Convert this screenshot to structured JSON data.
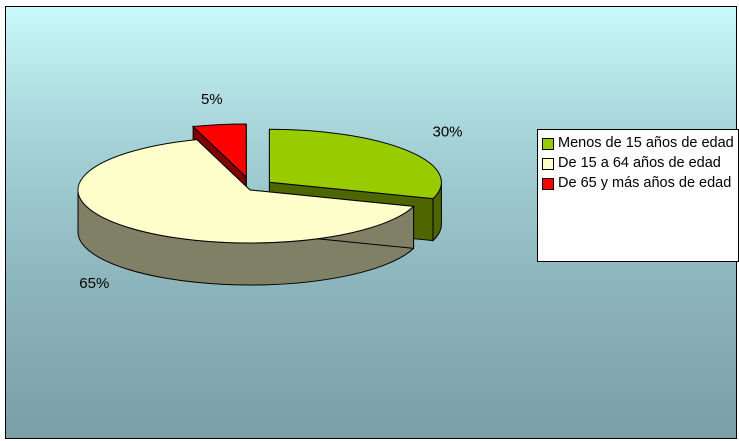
{
  "chart_data": {
    "type": "pie",
    "title": "",
    "categories": [
      "Menos de 15 años de edad",
      "De 15 a 64 años de edad",
      "De 65 y más años de edad"
    ],
    "values": [
      30,
      65,
      5
    ],
    "value_labels": [
      "30%",
      "65%",
      "5%"
    ],
    "colors": [
      "#99cc00",
      "#ffffcc",
      "#ff0000"
    ],
    "side_colors": [
      "#4d6600",
      "#808066",
      "#800000"
    ],
    "legend_position": "right",
    "three_d": true,
    "exploded": true
  }
}
